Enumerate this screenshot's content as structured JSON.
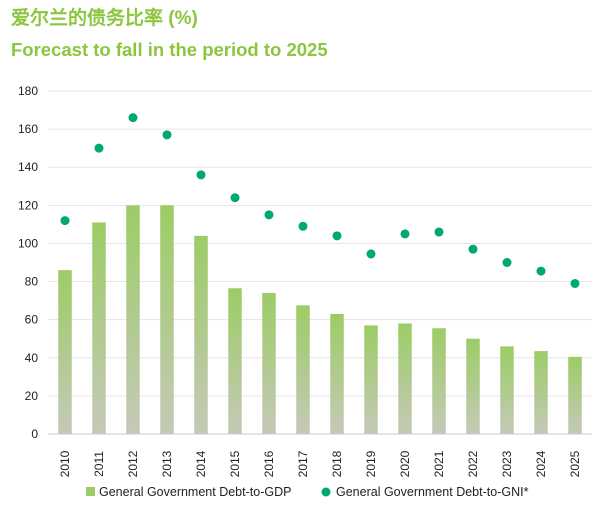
{
  "title": "爱尔兰的债务比率 (%)",
  "subtitle": "Forecast to fall in the period to 2025",
  "colors": {
    "title": "#8cc63f",
    "bar_top": "#9ccc65",
    "bar_bottom": "#c5c9b8",
    "dot": "#00a878",
    "grid": "#e6e6e6",
    "axis": "#c8c8c8"
  },
  "chart_data": {
    "type": "bar",
    "categories": [
      "2010",
      "2011",
      "2012",
      "2013",
      "2014",
      "2015",
      "2016",
      "2017",
      "2018",
      "2019",
      "2020",
      "2021",
      "2022",
      "2023",
      "2024",
      "2025"
    ],
    "ylim": [
      0,
      180
    ],
    "yticks": [
      0,
      20,
      40,
      60,
      80,
      100,
      120,
      140,
      160,
      180
    ],
    "grid": true,
    "legend": "bottom",
    "series": [
      {
        "name": "General Government Debt-to-GDP",
        "kind": "bar",
        "values": [
          86,
          111,
          120,
          120,
          104,
          76.5,
          74,
          67.5,
          63,
          57,
          58,
          55.5,
          50,
          46,
          43.5,
          40.5
        ]
      },
      {
        "name": "General Government Debt-to-GNI*",
        "kind": "scatter",
        "values": [
          112,
          150,
          166,
          157,
          136,
          124,
          115,
          109,
          104,
          94.5,
          105,
          106,
          97,
          90,
          85.5,
          79
        ]
      }
    ]
  }
}
